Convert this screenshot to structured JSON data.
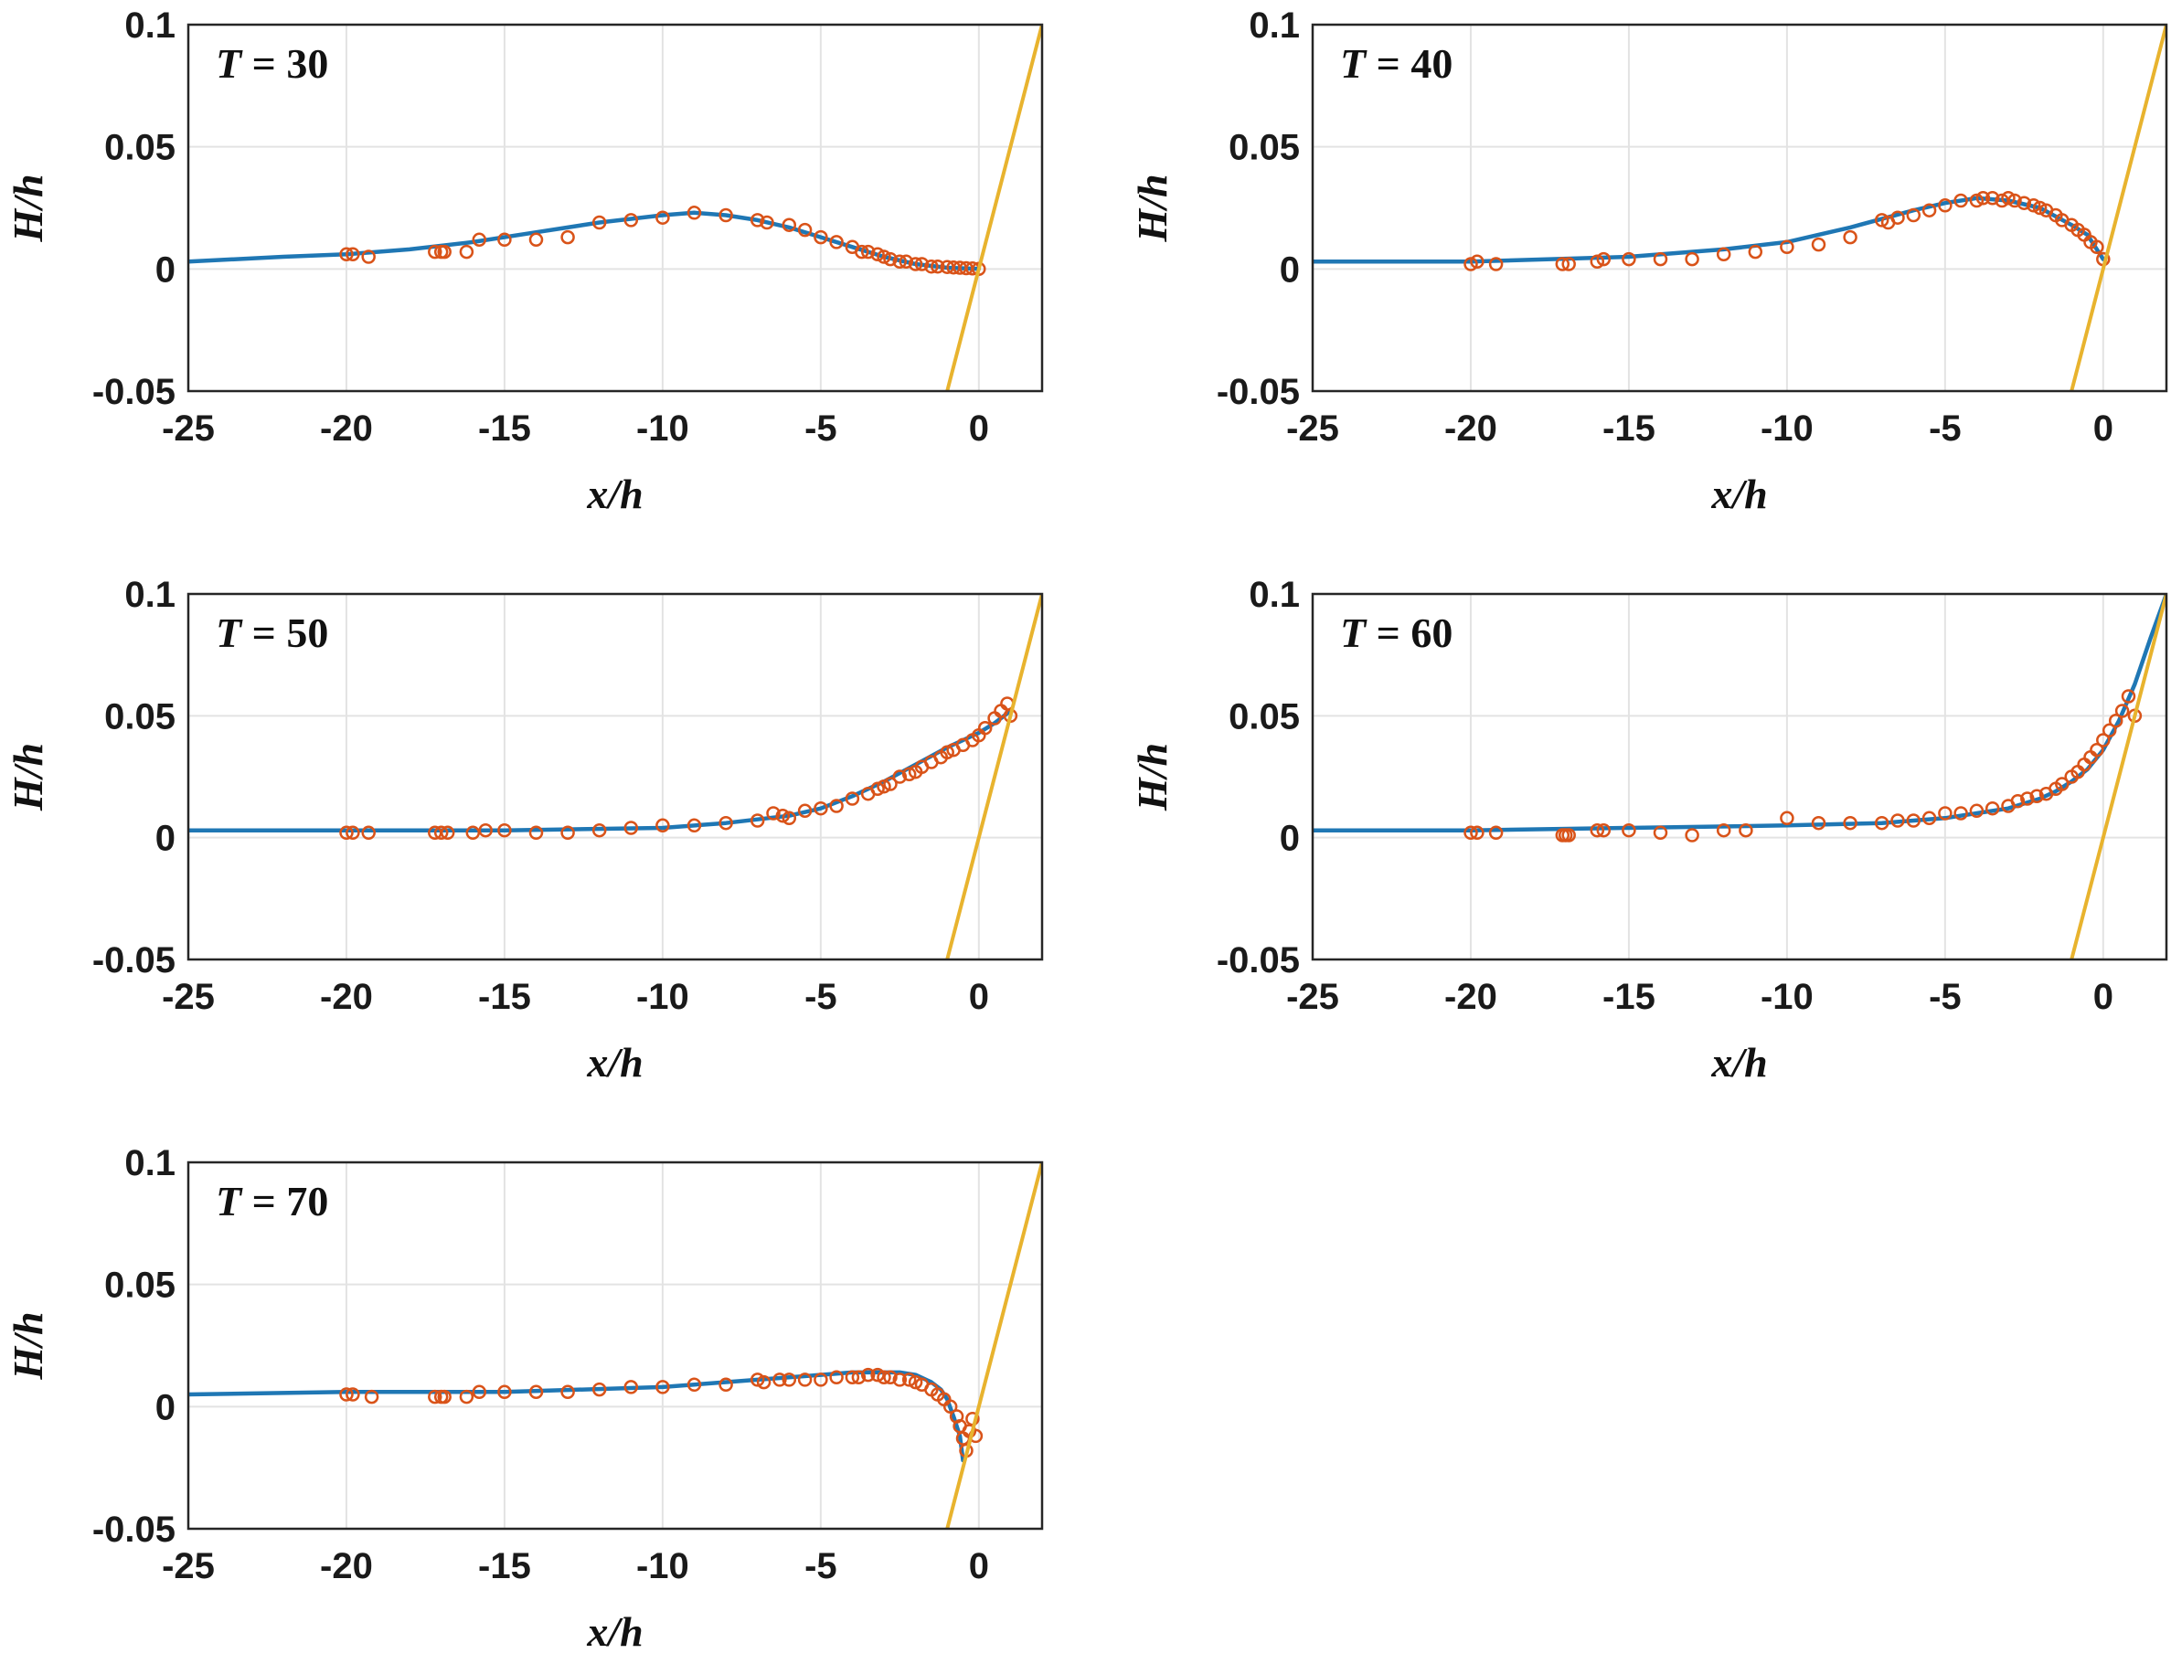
{
  "chart_data": [
    {
      "type": "scatter",
      "panel_label": {
        "var": "T",
        "rest": " = 30"
      },
      "xlabel": "x/h",
      "ylabel": "H/h",
      "xlim": [
        -25,
        2
      ],
      "ylim": [
        -0.05,
        0.1
      ],
      "xticks": [
        -25,
        -20,
        -15,
        -10,
        -5,
        0
      ],
      "xtick_labels": [
        "-25",
        "-20",
        "-15",
        "-10",
        "-5",
        "0"
      ],
      "yticks": [
        -0.05,
        0,
        0.05,
        0.1
      ],
      "ytick_labels": [
        "-0.05",
        "0",
        "0.05",
        "0.1"
      ],
      "grid": true,
      "colors": {
        "model": "#1f77b4",
        "measured": "#d95319",
        "slope": "#e8b32e"
      },
      "series": [
        {
          "kind": "line",
          "x": [
            -25,
            -22,
            -20,
            -18,
            -16,
            -14,
            -12,
            -10,
            -9,
            -8,
            -7,
            -6,
            -5,
            -4,
            -3,
            -2,
            -1,
            0
          ],
          "y": [
            0.003,
            0.005,
            0.006,
            0.008,
            0.011,
            0.015,
            0.019,
            0.022,
            0.023,
            0.022,
            0.02,
            0.017,
            0.013,
            0.009,
            0.005,
            0.002,
            0.0005,
            0
          ]
        },
        {
          "kind": "markers",
          "x": [
            -20,
            -19.8,
            -19.3,
            -17.2,
            -17,
            -16.9,
            -16.2,
            -15.8,
            -15,
            -14,
            -13,
            -12,
            -11,
            -10,
            -9,
            -8,
            -7,
            -6.7,
            -6,
            -5.5,
            -5,
            -4.5,
            -4,
            -3.7,
            -3.5,
            -3.2,
            -3,
            -2.8,
            -2.5,
            -2.3,
            -2,
            -1.8,
            -1.5,
            -1.3,
            -1,
            -0.8,
            -0.6,
            -0.4,
            -0.2,
            0
          ],
          "y": [
            0.006,
            0.006,
            0.005,
            0.007,
            0.007,
            0.007,
            0.007,
            0.012,
            0.012,
            0.012,
            0.013,
            0.019,
            0.02,
            0.021,
            0.023,
            0.022,
            0.02,
            0.019,
            0.018,
            0.016,
            0.013,
            0.011,
            0.009,
            0.007,
            0.007,
            0.006,
            0.005,
            0.004,
            0.003,
            0.003,
            0.002,
            0.002,
            0.001,
            0.001,
            0.0008,
            0.0006,
            0.0005,
            0.0003,
            0.0002,
            0
          ]
        },
        {
          "kind": "line",
          "x": [
            -1,
            2
          ],
          "y": [
            -0.05,
            0.1
          ]
        }
      ]
    },
    {
      "type": "scatter",
      "panel_label": {
        "var": "T",
        "rest": " = 40"
      },
      "xlabel": "x/h",
      "ylabel": "H/h",
      "xlim": [
        -25,
        2
      ],
      "ylim": [
        -0.05,
        0.1
      ],
      "xticks": [
        -25,
        -20,
        -15,
        -10,
        -5,
        0
      ],
      "xtick_labels": [
        "-25",
        "-20",
        "-15",
        "-10",
        "-5",
        "0"
      ],
      "yticks": [
        -0.05,
        0,
        0.05,
        0.1
      ],
      "ytick_labels": [
        "-0.05",
        "0",
        "0.05",
        "0.1"
      ],
      "grid": true,
      "colors": {
        "model": "#1f77b4",
        "measured": "#d95319",
        "slope": "#e8b32e"
      },
      "series": [
        {
          "kind": "line",
          "x": [
            -25,
            -20,
            -15,
            -12,
            -10,
            -8,
            -6,
            -5,
            -4,
            -3,
            -2,
            -1,
            -0.5,
            0
          ],
          "y": [
            0.003,
            0.003,
            0.005,
            0.008,
            0.011,
            0.017,
            0.024,
            0.027,
            0.029,
            0.028,
            0.025,
            0.018,
            0.014,
            0.004
          ]
        },
        {
          "kind": "markers",
          "x": [
            -20,
            -19.8,
            -19.2,
            -17.1,
            -16.9,
            -16,
            -15.8,
            -15,
            -14,
            -13,
            -12,
            -11,
            -10,
            -9,
            -8,
            -7,
            -6.8,
            -6.5,
            -6,
            -5.5,
            -5,
            -4.5,
            -4,
            -3.8,
            -3.5,
            -3.2,
            -3,
            -2.8,
            -2.5,
            -2.2,
            -2,
            -1.8,
            -1.5,
            -1.3,
            -1,
            -0.8,
            -0.6,
            -0.4,
            -0.2,
            0
          ],
          "y": [
            0.002,
            0.003,
            0.002,
            0.002,
            0.002,
            0.003,
            0.004,
            0.004,
            0.004,
            0.004,
            0.006,
            0.007,
            0.009,
            0.01,
            0.013,
            0.02,
            0.019,
            0.021,
            0.022,
            0.024,
            0.026,
            0.028,
            0.028,
            0.029,
            0.029,
            0.028,
            0.029,
            0.028,
            0.027,
            0.026,
            0.025,
            0.024,
            0.022,
            0.02,
            0.018,
            0.016,
            0.014,
            0.011,
            0.009,
            0.004
          ]
        },
        {
          "kind": "line",
          "x": [
            -1,
            2
          ],
          "y": [
            -0.05,
            0.1
          ]
        }
      ]
    },
    {
      "type": "scatter",
      "panel_label": {
        "var": "T",
        "rest": " = 50"
      },
      "xlabel": "x/h",
      "ylabel": "H/h",
      "xlim": [
        -25,
        2
      ],
      "ylim": [
        -0.05,
        0.1
      ],
      "xticks": [
        -25,
        -20,
        -15,
        -10,
        -5,
        0
      ],
      "xtick_labels": [
        "-25",
        "-20",
        "-15",
        "-10",
        "-5",
        "0"
      ],
      "yticks": [
        -0.05,
        0,
        0.05,
        0.1
      ],
      "ytick_labels": [
        "-0.05",
        "0",
        "0.05",
        "0.1"
      ],
      "grid": true,
      "colors": {
        "model": "#1f77b4",
        "measured": "#d95319",
        "slope": "#e8b32e"
      },
      "series": [
        {
          "kind": "line",
          "x": [
            -25,
            -20,
            -15,
            -10,
            -8,
            -6,
            -5,
            -4,
            -3,
            -2,
            -1,
            0,
            0.5,
            1
          ],
          "y": [
            0.003,
            0.003,
            0.003,
            0.004,
            0.006,
            0.009,
            0.012,
            0.017,
            0.023,
            0.03,
            0.037,
            0.043,
            0.047,
            0.052
          ]
        },
        {
          "kind": "markers",
          "x": [
            -20,
            -19.8,
            -19.3,
            -17.2,
            -17,
            -16.8,
            -16,
            -15.6,
            -15,
            -14,
            -13,
            -12,
            -11,
            -10,
            -9,
            -8,
            -7,
            -6.5,
            -6.2,
            -6,
            -5.5,
            -5,
            -4.5,
            -4,
            -3.5,
            -3.2,
            -3,
            -2.8,
            -2.5,
            -2.2,
            -2,
            -1.8,
            -1.5,
            -1.2,
            -1,
            -0.8,
            -0.5,
            -0.2,
            0,
            0.2,
            0.5,
            0.7,
            0.9,
            1
          ],
          "y": [
            0.002,
            0.002,
            0.002,
            0.002,
            0.002,
            0.002,
            0.002,
            0.003,
            0.003,
            0.002,
            0.002,
            0.003,
            0.004,
            0.005,
            0.005,
            0.006,
            0.007,
            0.01,
            0.009,
            0.008,
            0.011,
            0.012,
            0.013,
            0.016,
            0.018,
            0.02,
            0.021,
            0.022,
            0.025,
            0.026,
            0.027,
            0.029,
            0.031,
            0.033,
            0.035,
            0.036,
            0.038,
            0.04,
            0.042,
            0.045,
            0.049,
            0.052,
            0.055,
            0.05
          ]
        },
        {
          "kind": "line",
          "x": [
            -1,
            2
          ],
          "y": [
            -0.05,
            0.1
          ]
        }
      ]
    },
    {
      "type": "scatter",
      "panel_label": {
        "var": "T",
        "rest": " = 60"
      },
      "xlabel": "x/h",
      "ylabel": "H/h",
      "xlim": [
        -25,
        2
      ],
      "ylim": [
        -0.05,
        0.1
      ],
      "xticks": [
        -25,
        -20,
        -15,
        -10,
        -5,
        0
      ],
      "xtick_labels": [
        "-25",
        "-20",
        "-15",
        "-10",
        "-5",
        "0"
      ],
      "yticks": [
        -0.05,
        0,
        0.05,
        0.1
      ],
      "ytick_labels": [
        "-0.05",
        "0",
        "0.05",
        "0.1"
      ],
      "grid": true,
      "colors": {
        "model": "#1f77b4",
        "measured": "#d95319",
        "slope": "#e8b32e"
      },
      "series": [
        {
          "kind": "line",
          "x": [
            -25,
            -20,
            -15,
            -10,
            -7,
            -5,
            -4,
            -3,
            -2,
            -1.5,
            -1,
            -0.5,
            0,
            0.5,
            1,
            1.5,
            2
          ],
          "y": [
            0.003,
            0.003,
            0.004,
            0.005,
            0.006,
            0.008,
            0.01,
            0.012,
            0.016,
            0.019,
            0.023,
            0.028,
            0.036,
            0.048,
            0.063,
            0.082,
            0.1
          ]
        },
        {
          "kind": "markers",
          "x": [
            -20,
            -19.8,
            -19.2,
            -17.1,
            -17,
            -16.9,
            -16,
            -15.8,
            -15,
            -14,
            -13,
            -12,
            -11.3,
            -10,
            -9,
            -8,
            -7,
            -6.5,
            -6,
            -5.5,
            -5,
            -4.5,
            -4,
            -3.5,
            -3,
            -2.7,
            -2.4,
            -2.1,
            -1.8,
            -1.5,
            -1.3,
            -1,
            -0.8,
            -0.6,
            -0.4,
            -0.2,
            0,
            0.2,
            0.4,
            0.6,
            0.8,
            1
          ],
          "y": [
            0.002,
            0.002,
            0.002,
            0.001,
            0.001,
            0.001,
            0.003,
            0.003,
            0.003,
            0.002,
            0.001,
            0.003,
            0.003,
            0.008,
            0.006,
            0.006,
            0.006,
            0.007,
            0.007,
            0.008,
            0.01,
            0.01,
            0.011,
            0.012,
            0.013,
            0.015,
            0.016,
            0.017,
            0.018,
            0.02,
            0.022,
            0.025,
            0.027,
            0.03,
            0.033,
            0.036,
            0.04,
            0.044,
            0.048,
            0.052,
            0.058,
            0.05
          ]
        },
        {
          "kind": "line",
          "x": [
            -1,
            2
          ],
          "y": [
            -0.05,
            0.1
          ]
        }
      ]
    },
    {
      "type": "scatter",
      "panel_label": {
        "var": "T",
        "rest": " = 70"
      },
      "xlabel": "x/h",
      "ylabel": "H/h",
      "xlim": [
        -25,
        2
      ],
      "ylim": [
        -0.05,
        0.1
      ],
      "xticks": [
        -25,
        -20,
        -15,
        -10,
        -5,
        0
      ],
      "xtick_labels": [
        "-25",
        "-20",
        "-15",
        "-10",
        "-5",
        "0"
      ],
      "yticks": [
        -0.05,
        0,
        0.05,
        0.1
      ],
      "ytick_labels": [
        "-0.05",
        "0",
        "0.05",
        "0.1"
      ],
      "grid": true,
      "colors": {
        "model": "#1f77b4",
        "measured": "#d95319",
        "slope": "#e8b32e"
      },
      "series": [
        {
          "kind": "line",
          "x": [
            -25,
            -20,
            -15,
            -10,
            -7,
            -5,
            -4,
            -3.5,
            -3,
            -2.5,
            -2,
            -1.5,
            -1.2,
            -1,
            -0.8,
            -0.6,
            -0.5
          ],
          "y": [
            0.005,
            0.006,
            0.006,
            0.008,
            0.011,
            0.013,
            0.014,
            0.014,
            0.014,
            0.014,
            0.013,
            0.01,
            0.007,
            0.003,
            -0.004,
            -0.012,
            -0.022
          ]
        },
        {
          "kind": "markers",
          "x": [
            -20,
            -19.8,
            -19.2,
            -17.2,
            -17,
            -16.9,
            -16.2,
            -15.8,
            -15,
            -14,
            -13,
            -12,
            -11,
            -10,
            -9,
            -8,
            -7,
            -6.8,
            -6.3,
            -6,
            -5.5,
            -5,
            -4.5,
            -4,
            -3.8,
            -3.5,
            -3.2,
            -3,
            -2.8,
            -2.5,
            -2.2,
            -2,
            -1.8,
            -1.5,
            -1.3,
            -1.1,
            -0.9,
            -0.7,
            -0.6,
            -0.5,
            -0.4,
            -0.3,
            -0.2,
            -0.1
          ],
          "y": [
            0.005,
            0.005,
            0.004,
            0.004,
            0.004,
            0.004,
            0.004,
            0.006,
            0.006,
            0.006,
            0.006,
            0.007,
            0.008,
            0.008,
            0.009,
            0.009,
            0.011,
            0.01,
            0.011,
            0.011,
            0.011,
            0.011,
            0.012,
            0.012,
            0.012,
            0.013,
            0.013,
            0.012,
            0.012,
            0.011,
            0.011,
            0.01,
            0.009,
            0.007,
            0.005,
            0.003,
            0.0,
            -0.004,
            -0.008,
            -0.013,
            -0.018,
            -0.01,
            -0.005,
            -0.012
          ]
        },
        {
          "kind": "line",
          "x": [
            -1,
            2
          ],
          "y": [
            -0.05,
            0.1
          ]
        }
      ]
    }
  ]
}
